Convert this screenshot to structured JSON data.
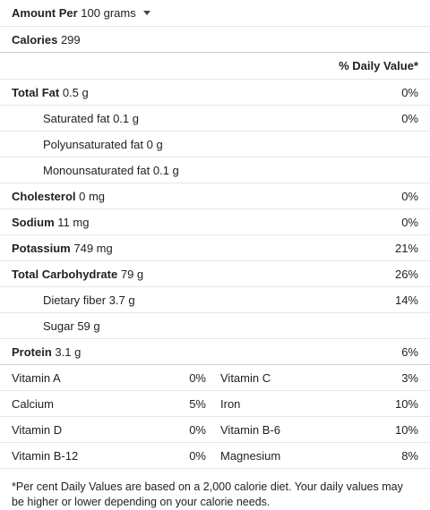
{
  "amount": {
    "label": "Amount Per",
    "unit": "100 grams"
  },
  "calories": {
    "label": "Calories",
    "value": "299"
  },
  "dv_header": "% Daily Value*",
  "nutrients": [
    {
      "label": "Total Fat",
      "amount": "0.5 g",
      "dv": "0%"
    },
    {
      "label": "Saturated fat",
      "amount": "0.1 g",
      "dv": "0%"
    },
    {
      "label": "Polyunsaturated fat",
      "amount": "0 g",
      "dv": ""
    },
    {
      "label": "Monounsaturated fat",
      "amount": "0.1 g",
      "dv": ""
    },
    {
      "label": "Cholesterol",
      "amount": "0 mg",
      "dv": "0%"
    },
    {
      "label": "Sodium",
      "amount": "11 mg",
      "dv": "0%"
    },
    {
      "label": "Potassium",
      "amount": "749 mg",
      "dv": "21%"
    },
    {
      "label": "Total Carbohydrate",
      "amount": "79 g",
      "dv": "26%"
    },
    {
      "label": "Dietary fiber",
      "amount": "3.7 g",
      "dv": "14%"
    },
    {
      "label": "Sugar",
      "amount": "59 g",
      "dv": ""
    },
    {
      "label": "Protein",
      "amount": "3.1 g",
      "dv": "6%"
    }
  ],
  "vitamins": [
    {
      "left": {
        "name": "Vitamin A",
        "dv": "0%"
      },
      "right": {
        "name": "Vitamin C",
        "dv": "3%"
      }
    },
    {
      "left": {
        "name": "Calcium",
        "dv": "5%"
      },
      "right": {
        "name": "Iron",
        "dv": "10%"
      }
    },
    {
      "left": {
        "name": "Vitamin D",
        "dv": "0%"
      },
      "right": {
        "name": "Vitamin B-6",
        "dv": "10%"
      }
    },
    {
      "left": {
        "name": "Vitamin B-12",
        "dv": "0%"
      },
      "right": {
        "name": "Magnesium",
        "dv": "8%"
      }
    }
  ],
  "footnote": "*Per cent Daily Values are based on a 2,000 calorie diet. Your daily values may be higher or lower depending on your calorie needs."
}
